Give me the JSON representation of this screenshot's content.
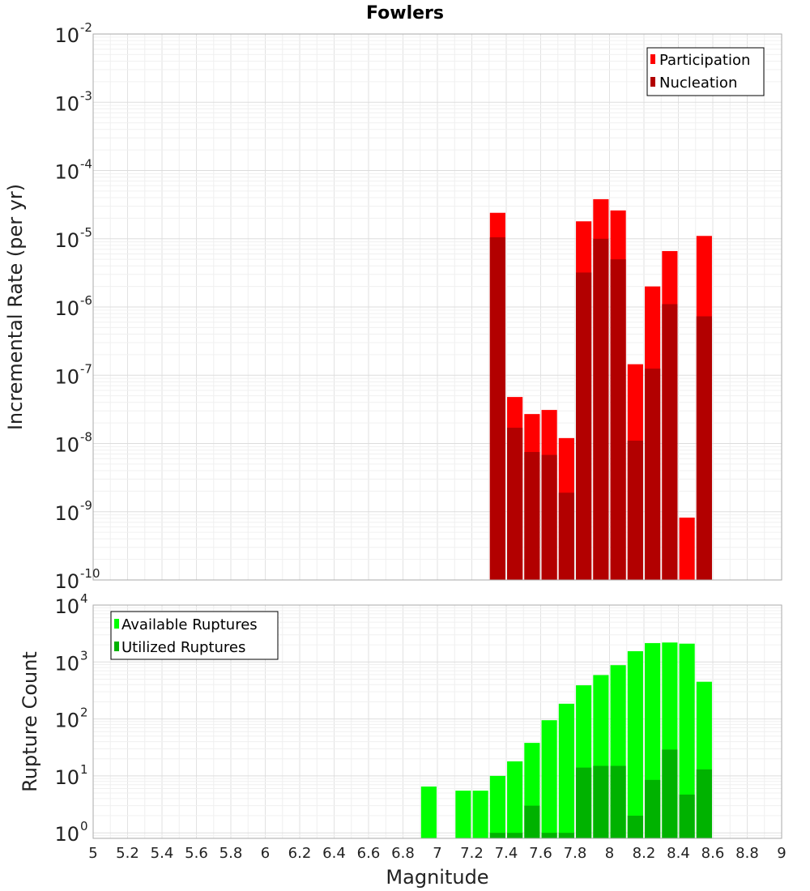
{
  "chart_data": [
    {
      "type": "bar",
      "title": "Fowlers",
      "ylabel": "Incremental Rate (per yr)",
      "xlim": [
        5,
        9
      ],
      "ylim": [
        1e-10,
        0.01
      ],
      "yscale": "log",
      "grid": true,
      "legend_position": "top-right",
      "legend": [
        {
          "label": "Participation",
          "color": "#ff0000"
        },
        {
          "label": "Nucleation",
          "color": "#b20000"
        }
      ],
      "x": [
        7.35,
        7.45,
        7.55,
        7.65,
        7.75,
        7.85,
        7.95,
        8.05,
        8.15,
        8.25,
        8.35,
        8.45,
        8.55
      ],
      "series": [
        {
          "name": "Participation",
          "color": "#ff0000",
          "values": [
            2.4e-05,
            4.8e-08,
            2.7e-08,
            3.1e-08,
            1.2e-08,
            1.8e-05,
            3.8e-05,
            2.6e-05,
            1.45e-07,
            2e-06,
            6.6e-06,
            8.2e-10,
            1.1e-05
          ]
        },
        {
          "name": "Nucleation",
          "color": "#b20000",
          "values": [
            1.05e-05,
            1.7e-08,
            7.5e-09,
            6.8e-09,
            1.9e-09,
            3.2e-06,
            1e-05,
            5e-06,
            1.1e-08,
            1.25e-07,
            1.1e-06,
            null,
            7.3e-07
          ]
        }
      ],
      "yticks": [
        {
          "base": "10",
          "exp": "-2"
        },
        {
          "base": "10",
          "exp": "-3"
        },
        {
          "base": "10",
          "exp": "-4"
        },
        {
          "base": "10",
          "exp": "-5"
        },
        {
          "base": "10",
          "exp": "-6"
        },
        {
          "base": "10",
          "exp": "-7"
        },
        {
          "base": "10",
          "exp": "-8"
        },
        {
          "base": "10",
          "exp": "-9"
        },
        {
          "base": "10",
          "exp": "-10"
        }
      ]
    },
    {
      "type": "bar",
      "ylabel": "Rupture Count",
      "xlabel": "Magnitude",
      "xlim": [
        5,
        9
      ],
      "ylim": [
        0.8,
        10000
      ],
      "yscale": "log",
      "grid": true,
      "legend_position": "top-left",
      "legend": [
        {
          "label": "Available Ruptures",
          "color": "#00ff00"
        },
        {
          "label": "Utilized Ruptures",
          "color": "#00b200"
        }
      ],
      "x": [
        6.95,
        7.15,
        7.25,
        7.35,
        7.45,
        7.55,
        7.65,
        7.75,
        7.85,
        7.95,
        8.05,
        8.15,
        8.25,
        8.35,
        8.45,
        8.55
      ],
      "series": [
        {
          "name": "Available Ruptures",
          "color": "#00ff00",
          "values": [
            6.5,
            5.5,
            5.5,
            10,
            18,
            38,
            95,
            185,
            390,
            590,
            880,
            1550,
            2150,
            2200,
            2100,
            450
          ]
        },
        {
          "name": "Utilized Ruptures",
          "color": "#00b200",
          "values": [
            null,
            null,
            null,
            1,
            1,
            3,
            1,
            1,
            14,
            15,
            15,
            2,
            8.5,
            29,
            4.7,
            13
          ]
        }
      ],
      "yticks": [
        {
          "base": "10",
          "exp": "4"
        },
        {
          "base": "10",
          "exp": "3"
        },
        {
          "base": "10",
          "exp": "2"
        },
        {
          "base": "10",
          "exp": "1"
        },
        {
          "base": "10",
          "exp": "0"
        }
      ],
      "xticks": [
        "5",
        "5.2",
        "5.4",
        "5.6",
        "5.8",
        "6",
        "6.2",
        "6.4",
        "6.6",
        "6.8",
        "7",
        "7.2",
        "7.4",
        "7.6",
        "7.8",
        "8",
        "8.2",
        "8.4",
        "8.6",
        "8.8",
        "9"
      ]
    }
  ]
}
